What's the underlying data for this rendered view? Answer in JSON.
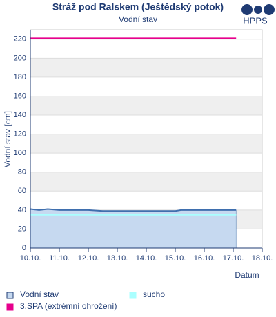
{
  "chart_data": {
    "type": "line",
    "title": "Stráž pod Ralskem (Ještědský potok)",
    "subtitle": "Vodní stav",
    "logo_text": "HPPS",
    "y_label": "Vodní stav [cm]",
    "x_label": "Datum",
    "xlim": [
      10,
      18
    ],
    "xticks": [
      {
        "value": 10,
        "label": "10.10."
      },
      {
        "value": 11,
        "label": "11.10."
      },
      {
        "value": 12,
        "label": "12.10."
      },
      {
        "value": 13,
        "label": "13.10."
      },
      {
        "value": 14,
        "label": "14.10."
      },
      {
        "value": 15,
        "label": "15.10."
      },
      {
        "value": 16,
        "label": "16.10."
      },
      {
        "value": 17,
        "label": "17.10."
      },
      {
        "value": 18,
        "label": "18.10."
      }
    ],
    "ylim": [
      0,
      230
    ],
    "yticks": [
      0,
      20,
      40,
      60,
      80,
      100,
      120,
      140,
      160,
      180,
      200,
      220
    ],
    "grid": true,
    "series": [
      {
        "name": "Vodní stav",
        "color": "#3f6fae",
        "area_color": "#c6d9f0",
        "x": [
          10,
          10.3,
          10.6,
          11,
          11.5,
          12,
          12.5,
          13,
          14,
          15,
          15.2,
          16,
          17,
          17.1
        ],
        "values": [
          41,
          40,
          41,
          40,
          40,
          40,
          39,
          39,
          39,
          39,
          40,
          40,
          40,
          40
        ]
      },
      {
        "name": "sucho",
        "color": "#aaffff",
        "x": [
          10,
          17.1
        ],
        "values": [
          35,
          35
        ]
      },
      {
        "name": "3.SPA (extrémní ohrožení)",
        "color": "#e6008c",
        "x": [
          10,
          17.1
        ],
        "values": [
          221,
          221
        ]
      }
    ]
  }
}
